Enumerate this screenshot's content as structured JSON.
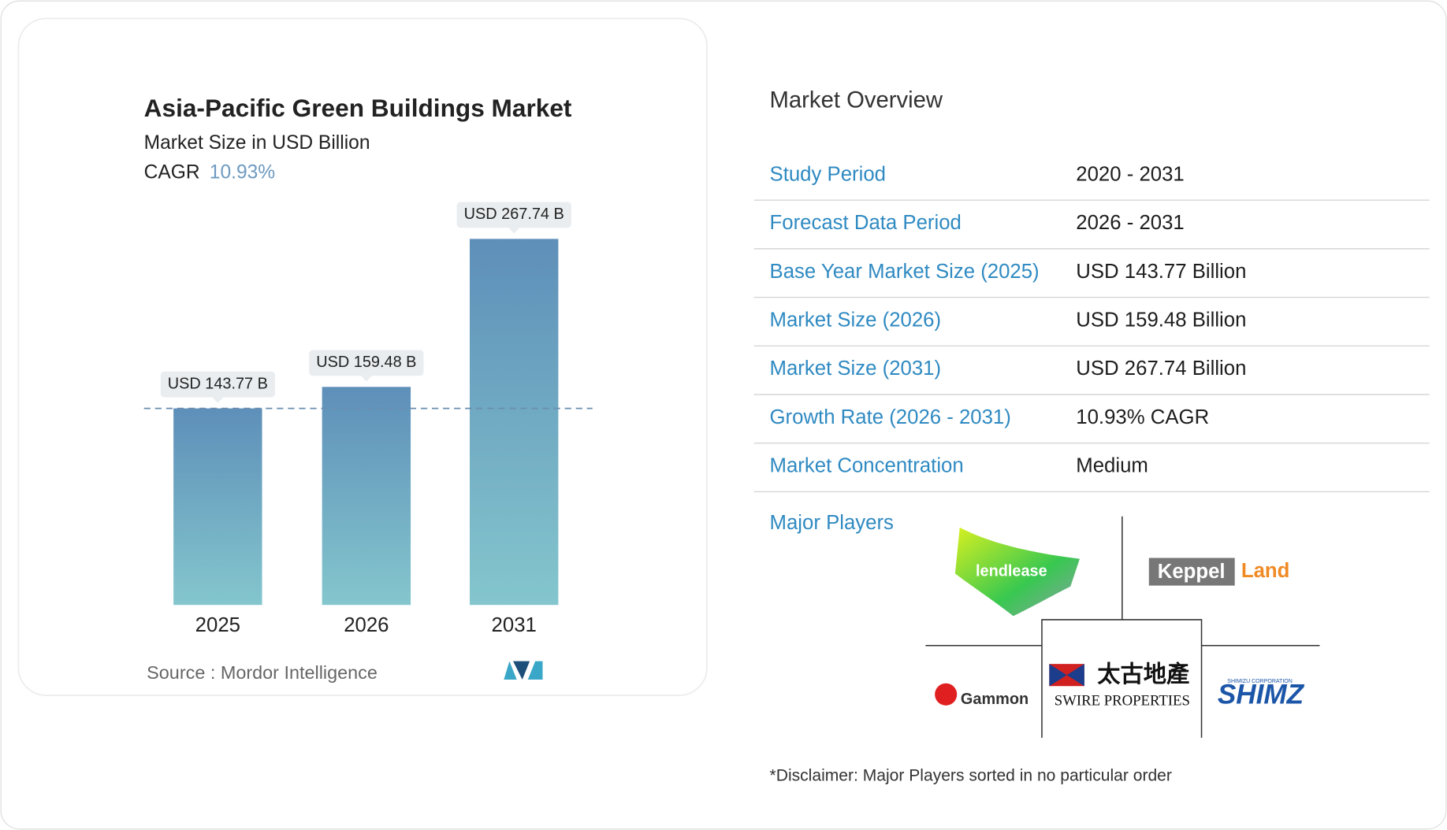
{
  "chart_data": {
    "type": "bar",
    "title": "Asia-Pacific Green Buildings Market",
    "subtitle": "Market Size in USD Billion",
    "cagr_label": "CAGR",
    "cagr_value": "10.93%",
    "categories": [
      "2025",
      "2026",
      "2031"
    ],
    "values": [
      143.77,
      159.48,
      267.74
    ],
    "value_labels": [
      "USD 143.77 B",
      "USD 159.48 B",
      "USD 267.74 B"
    ],
    "colors": [
      "#5e8fb9",
      "#84c6cd"
    ],
    "reference_line": true,
    "source": "Source :  Mordor Intelligence"
  },
  "overview": {
    "title": "Market Overview",
    "rows": [
      [
        "Study Period",
        "2020 - 2031"
      ],
      [
        "Forecast Data Period",
        "2026 - 2031"
      ],
      [
        "Base Year Market Size (2025)",
        "USD 143.77 Billion"
      ],
      [
        "Market Size (2026)",
        "USD 159.48 Billion"
      ],
      [
        "Market Size (2031)",
        "USD 267.74 Billion"
      ],
      [
        "Growth Rate (2026 - 2031)",
        "10.93% CAGR"
      ],
      [
        "Market Concentration",
        "Medium"
      ]
    ],
    "major_players": {
      "label": "Major Players",
      "lendlease": "lendlease",
      "keppel": "Keppel",
      "land": "Land",
      "gammon": "Gammon",
      "swire_cn": "太古地產",
      "swire_en": "SWIRE PROPERTIES",
      "shimizu_small": "SHIMIZU CORPORATION",
      "shimizu": "SHIMZ"
    },
    "disclaimer": "*Disclaimer: Major Players sorted in no particular order"
  }
}
